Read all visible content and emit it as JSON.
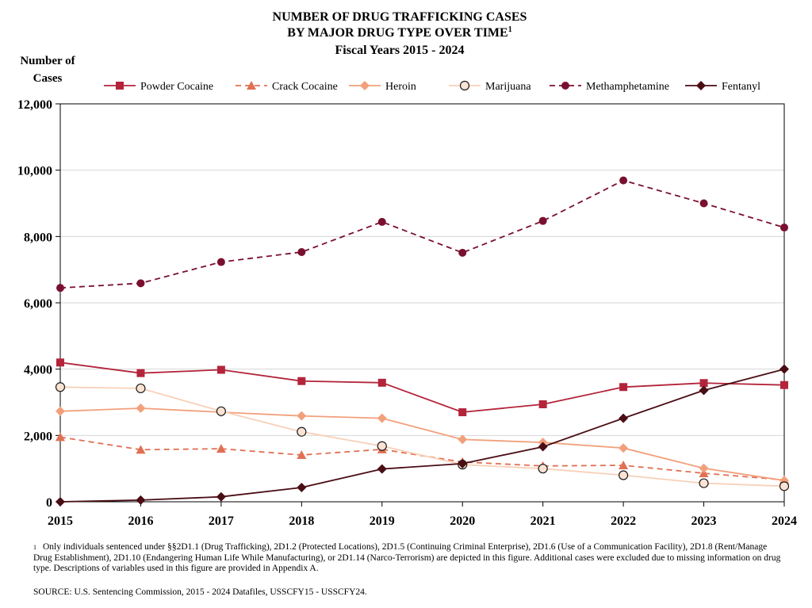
{
  "chart_data": {
    "type": "line",
    "title_lines": [
      "NUMBER OF DRUG TRAFFICKING CASES",
      "BY MAJOR DRUG TYPE OVER TIME",
      "Fiscal Years 2015 - 2024"
    ],
    "title_superscript": "1",
    "ylabel_lines": [
      "Number of",
      "Cases"
    ],
    "ylim": [
      0,
      12000
    ],
    "yticks": [
      "0",
      "2,000",
      "4,000",
      "6,000",
      "8,000",
      "10,000",
      "12,000"
    ],
    "ytick_values": [
      0,
      2000,
      4000,
      6000,
      8000,
      10000,
      12000
    ],
    "categories": [
      "2015",
      "2016",
      "2017",
      "2018",
      "2019",
      "2020",
      "2021",
      "2022",
      "2023",
      "2024"
    ],
    "grid": true,
    "legend_position": "top",
    "series": [
      {
        "name": "Powder Cocaine",
        "color": "#b3243b",
        "dash": "solid",
        "marker": "square",
        "values": [
          4200,
          3880,
          3980,
          3640,
          3590,
          2700,
          2940,
          3460,
          3580,
          3520
        ]
      },
      {
        "name": "Crack Cocaine",
        "color": "#e07054",
        "dash": "dashed",
        "marker": "triangle",
        "values": [
          1950,
          1570,
          1600,
          1410,
          1580,
          1200,
          1080,
          1100,
          860,
          660
        ]
      },
      {
        "name": "Heroin",
        "color": "#f2a07c",
        "dash": "solid",
        "marker": "diamond",
        "values": [
          2730,
          2820,
          2700,
          2590,
          2520,
          1880,
          1790,
          1620,
          1010,
          640
        ]
      },
      {
        "name": "Marijuana",
        "color": "#f8d0b8",
        "dash": "solid",
        "marker": "circle-open",
        "values": [
          3460,
          3420,
          2730,
          2110,
          1680,
          1120,
          1000,
          800,
          560,
          470
        ]
      },
      {
        "name": "Methamphetamine",
        "color": "#7a1030",
        "dash": "dashed",
        "marker": "circle",
        "values": [
          6450,
          6590,
          7230,
          7530,
          8440,
          7510,
          8470,
          9690,
          9000,
          8270
        ]
      },
      {
        "name": "Fentanyl",
        "color": "#4a0d14",
        "dash": "solid",
        "marker": "diamond",
        "values": [
          0,
          50,
          150,
          430,
          990,
          1150,
          1660,
          2520,
          3360,
          4000
        ]
      }
    ]
  },
  "footnote": {
    "marker": "1",
    "text": "Only individuals sentenced under §§2D1.1 (Drug Trafficking), 2D1.2 (Protected Locations), 2D1.5 (Continuing Criminal Enterprise), 2D1.6 (Use of a Communication Facility), 2D1.8 (Rent/Manage Drug Establishment), 2D1.10 (Endangering Human Life While Manufacturing), or 2D1.14 (Narco-Terrorism) are depicted in this figure.  Additional cases were excluded due to missing information on drug type.  Descriptions of variables used in this figure are provided in Appendix A."
  },
  "source": "SOURCE:  U.S. Sentencing Commission, 2015 - 2024 Datafiles, USSCFY15 - USSCFY24."
}
